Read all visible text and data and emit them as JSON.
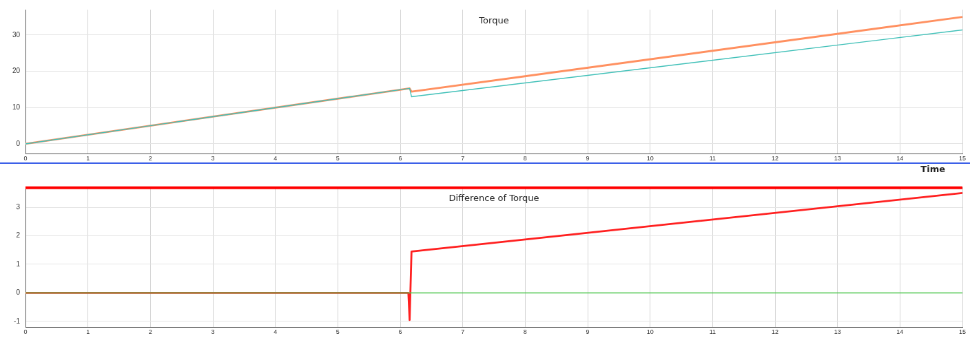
{
  "chart_data": [
    {
      "type": "line",
      "title": "Torque",
      "xlabel": "Time",
      "xlim": [
        0,
        15
      ],
      "xticks": [
        0,
        1,
        2,
        3,
        4,
        5,
        6,
        7,
        8,
        9,
        10,
        11,
        12,
        13,
        14,
        15
      ],
      "ylim": [
        -2.7,
        37
      ],
      "yticks": [
        0,
        10,
        20,
        30
      ],
      "grid": true,
      "legend": false,
      "marker": "none",
      "line_style": "solid",
      "series": [
        {
          "color": "#40c0b8",
          "x": [
            0,
            3,
            6.15,
            6.18,
            15
          ],
          "values": [
            0,
            7.5,
            15.3,
            13,
            31.4
          ]
        },
        {
          "color": "#ff9060",
          "x": [
            0,
            3,
            6.15,
            6.18,
            15
          ],
          "values": [
            0,
            7.5,
            15.3,
            14.4,
            35
          ]
        }
      ]
    },
    {
      "type": "line",
      "title": "Difference of Torque",
      "xlim": [
        0,
        15
      ],
      "xticks": [
        0,
        1,
        2,
        3,
        4,
        5,
        6,
        7,
        8,
        9,
        10,
        11,
        12,
        13,
        14,
        15
      ],
      "ylim": [
        -1.2,
        3.7
      ],
      "yticks": [
        -1,
        0,
        1,
        2,
        3
      ],
      "grid": true,
      "legend": false,
      "marker": "none",
      "line_style": "solid",
      "ref_lines": [
        {
          "axis": "y",
          "value": 3.68,
          "color": "#ff0000"
        }
      ],
      "series": [
        {
          "color": "#50c850",
          "x": [
            0,
            15
          ],
          "values": [
            0,
            0
          ]
        },
        {
          "color": "#ff2020",
          "x": [
            0,
            6.13,
            6.15,
            6.18,
            8,
            15
          ],
          "values": [
            0,
            0,
            -0.95,
            1.45,
            1.87,
            3.5
          ]
        }
      ]
    }
  ]
}
